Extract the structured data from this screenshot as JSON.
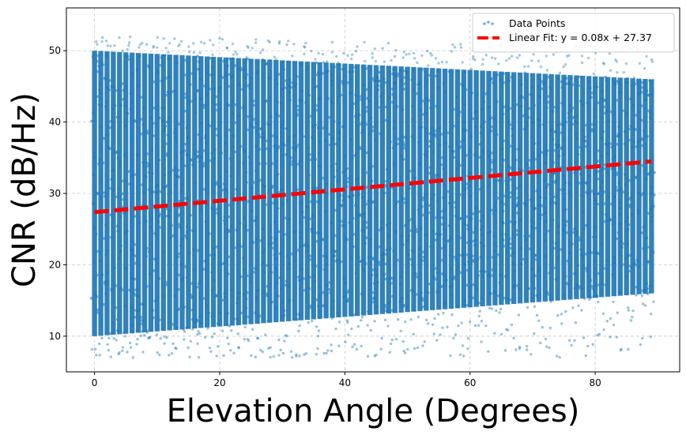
{
  "chart_data": {
    "type": "scatter",
    "title": "",
    "xlabel": "Elevation Angle (Degrees)",
    "ylabel": "CNR (dB/Hz)",
    "xlim": [
      -4.5,
      93.5
    ],
    "ylim": [
      5,
      56
    ],
    "xticks": [
      0,
      20,
      40,
      60,
      80
    ],
    "yticks": [
      10,
      20,
      30,
      40,
      50
    ],
    "grid": true,
    "legend_position": "top-right",
    "series": [
      {
        "name": "Data Points",
        "kind": "scatter",
        "color": "#1f77b4",
        "x_range": [
          0,
          89
        ],
        "x_step": 1,
        "dense_band_lower": [
          10,
          16
        ],
        "dense_band_upper": [
          50,
          46
        ],
        "sparse_min": 7,
        "sparse_max": 53.5
      },
      {
        "name": "Linear Fit: y = 0.08x + 27.37",
        "kind": "line",
        "style": "dashed",
        "color": "#ff0000",
        "slope": 0.08,
        "intercept": 27.37,
        "x": [
          0,
          89
        ]
      }
    ]
  }
}
